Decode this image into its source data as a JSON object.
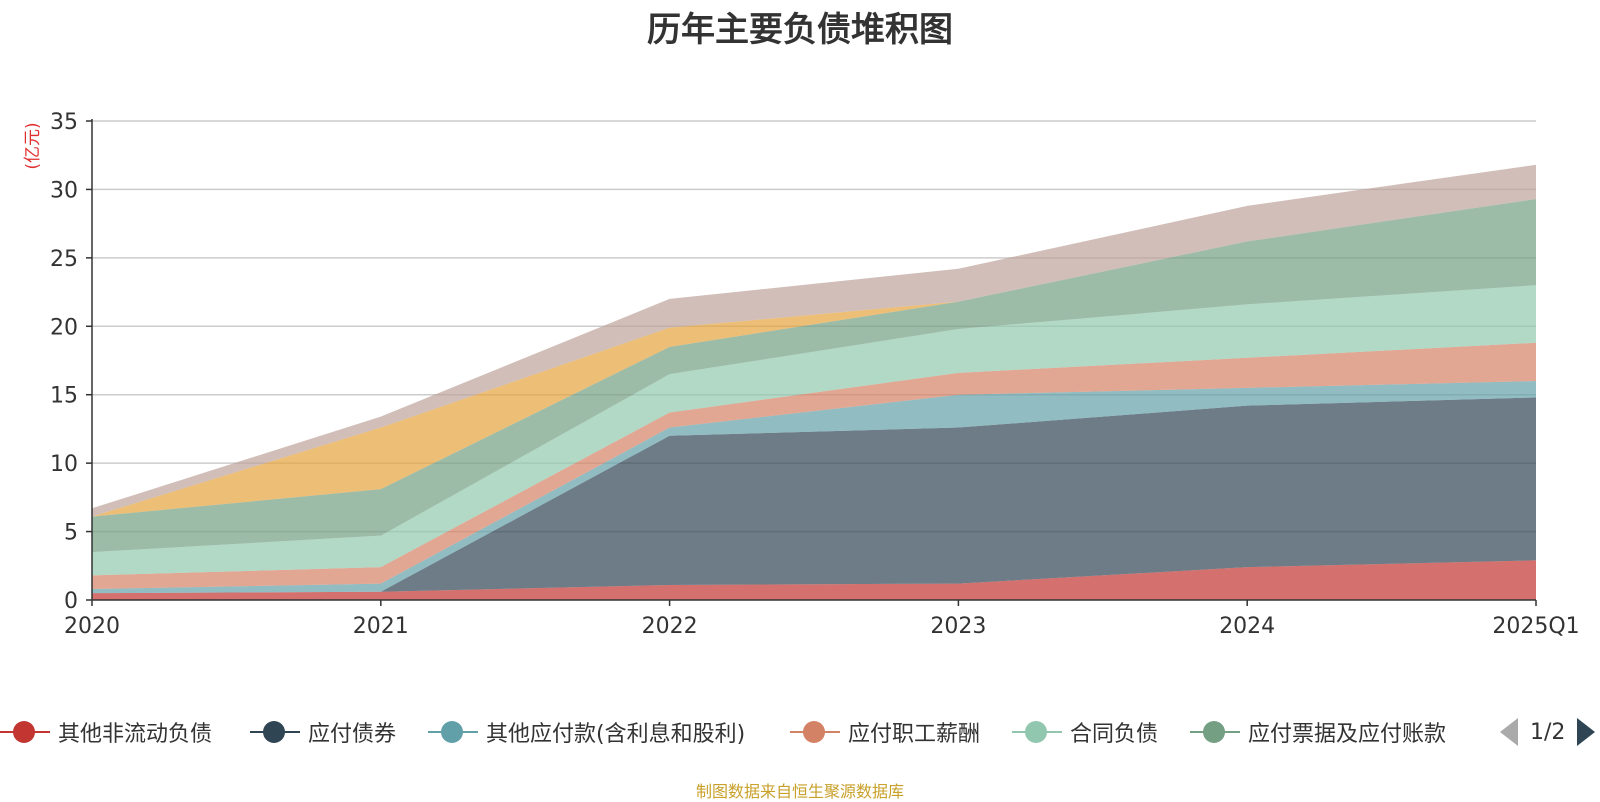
{
  "title": "历年主要负债堆积图",
  "source": "制图数据来自恒生聚源数据库",
  "legend": {
    "items": [
      {
        "name": "其他非流动负债",
        "color": "#c23531"
      },
      {
        "name": "应付债券",
        "color": "#2f4554"
      },
      {
        "name": "其他应付款(含利息和股利)",
        "color": "#61a0a8"
      },
      {
        "name": "应付职工薪酬",
        "color": "#d48265"
      },
      {
        "name": "合同负债",
        "color": "#91c7ae"
      },
      {
        "name": "应付票据及应付账款",
        "color": "#749f83"
      }
    ],
    "page": "1/2"
  },
  "chart_data": {
    "type": "area",
    "stacked": true,
    "title": "历年主要负债堆积图",
    "ylabel": "(亿元)",
    "ylim": [
      0,
      35
    ],
    "yticks": [
      0,
      5,
      10,
      15,
      20,
      25,
      30,
      35
    ],
    "grid": true,
    "legend_position": "bottom",
    "categories": [
      "2020",
      "2021",
      "2022",
      "2023",
      "2024",
      "2025Q1"
    ],
    "series": [
      {
        "name": "其他非流动负债",
        "color": "#c23531",
        "values": [
          0.5,
          0.6,
          1.1,
          1.2,
          2.4,
          2.9
        ]
      },
      {
        "name": "应付债券",
        "color": "#2f4554",
        "values": [
          0.0,
          0.0,
          10.9,
          11.4,
          11.8,
          11.9
        ]
      },
      {
        "name": "其他应付款(含利息和股利)",
        "color": "#61a0a8",
        "values": [
          0.3,
          0.6,
          0.6,
          2.4,
          1.3,
          1.2
        ]
      },
      {
        "name": "应付职工薪酬",
        "color": "#d48265",
        "values": [
          1.0,
          1.2,
          1.1,
          1.6,
          2.2,
          2.8
        ]
      },
      {
        "name": "合同负债",
        "color": "#91c7ae",
        "values": [
          1.7,
          2.3,
          2.8,
          3.2,
          3.9,
          4.2
        ]
      },
      {
        "name": "应付票据及应付账款",
        "color": "#749f83",
        "values": [
          2.6,
          3.4,
          2.0,
          2.0,
          4.6,
          6.3
        ]
      },
      {
        "name": "",
        "color": "#e6a23c",
        "values": [
          0.0,
          4.5,
          1.4,
          0.0,
          0.0,
          0.0
        ]
      },
      {
        "name": "",
        "color": "#bda29a",
        "values": [
          0.6,
          0.8,
          2.1,
          2.4,
          2.6,
          2.5
        ]
      }
    ]
  }
}
